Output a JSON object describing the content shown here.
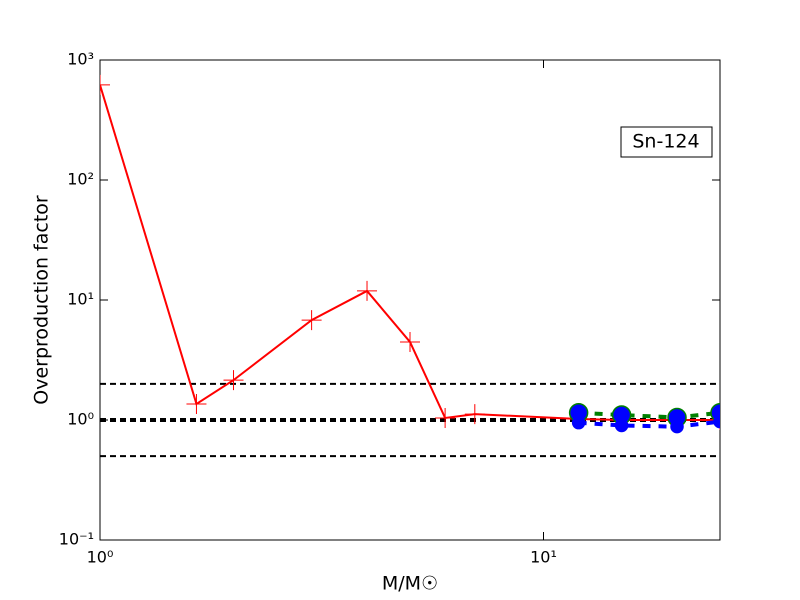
{
  "chart_data": {
    "type": "line",
    "xlabel": "M/M☉",
    "ylabel": "Overproduction factor",
    "annotation": "Sn-124",
    "xscale": "log",
    "yscale": "log",
    "xlim": [
      1,
      25
    ],
    "ylim": [
      0.1,
      1000
    ],
    "xticks": [
      {
        "value": 1,
        "label": "10⁰"
      },
      {
        "value": 10,
        "label": "10¹"
      }
    ],
    "yticks": [
      {
        "value": 0.1,
        "label": "10⁻¹"
      },
      {
        "value": 1,
        "label": "10⁰"
      },
      {
        "value": 10,
        "label": "10¹"
      },
      {
        "value": 100,
        "label": "10²"
      },
      {
        "value": 1000,
        "label": "10³"
      }
    ],
    "reference_lines": [
      2,
      1,
      0.5
    ],
    "series": [
      {
        "color": "#ff0000",
        "marker": "+",
        "dash": "solid",
        "x": [
          1,
          1.65,
          2,
          3,
          4,
          5,
          6,
          7,
          12,
          15,
          20,
          25
        ],
        "values": [
          620,
          1.36,
          2.15,
          6.8,
          11.9,
          4.47,
          1.04,
          1.12,
          1.02,
          1.0,
          1.0,
          1.0
        ]
      },
      {
        "color": "#008000",
        "marker": "o",
        "marker_color": "#0000ff",
        "marker_size": 9,
        "dash": "dashed",
        "x": [
          12,
          15,
          20,
          25
        ],
        "values": [
          1.15,
          1.1,
          1.05,
          1.15
        ]
      },
      {
        "color": "#0000ff",
        "marker": "o",
        "marker_color": "#0000ff",
        "marker_size": 6,
        "dash": "dashed",
        "x": [
          12,
          15,
          20,
          25
        ],
        "values": [
          0.95,
          0.9,
          0.88,
          0.97
        ]
      }
    ]
  }
}
